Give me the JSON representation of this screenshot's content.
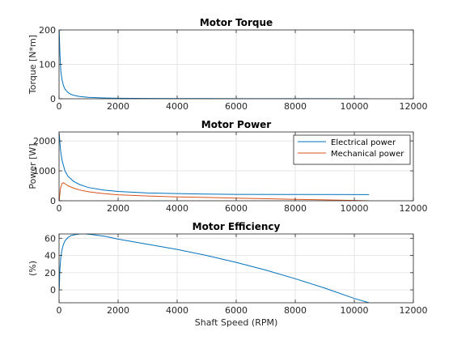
{
  "chart_data": [
    {
      "type": "line",
      "title": "Motor Torque",
      "xlabel": "",
      "ylabel": "Torque [N*m]",
      "xlim": [
        0,
        12000
      ],
      "ylim": [
        0,
        200
      ],
      "xticks": [
        0,
        2000,
        4000,
        6000,
        8000,
        10000,
        12000
      ],
      "yticks": [
        0,
        100,
        200
      ],
      "grid": true,
      "legend": null,
      "series": [
        {
          "color": "#0072BD",
          "x": [
            5,
            30,
            60,
            100,
            150,
            200,
            300,
            400,
            500,
            700,
            1000,
            1500,
            2000,
            3000,
            4000,
            6000,
            8000,
            10500
          ],
          "y": [
            200,
            130,
            80,
            55,
            38,
            28,
            18,
            13,
            10,
            6.5,
            4,
            2.3,
            1.5,
            0.9,
            0.6,
            0.3,
            0.15,
            0.05
          ]
        }
      ]
    },
    {
      "type": "line",
      "title": "Motor Power",
      "xlabel": "",
      "ylabel": "Power [W]",
      "xlim": [
        0,
        12000
      ],
      "ylim": [
        0,
        2300
      ],
      "xticks": [
        0,
        2000,
        4000,
        6000,
        8000,
        10000,
        12000
      ],
      "yticks": [
        0,
        1000,
        2000
      ],
      "grid": true,
      "legend": "top-right",
      "series": [
        {
          "name": "Electrical power",
          "color": "#0072BD",
          "x": [
            5,
            50,
            100,
            200,
            300,
            500,
            700,
            1000,
            1500,
            2000,
            3000,
            4000,
            5000,
            6000,
            8000,
            10500
          ],
          "y": [
            2250,
            1700,
            1350,
            1000,
            820,
            640,
            540,
            440,
            360,
            310,
            260,
            240,
            225,
            215,
            210,
            205
          ]
        },
        {
          "name": "Mechanical power",
          "color": "#D95319",
          "x": [
            5,
            50,
            100,
            150,
            200,
            300,
            500,
            700,
            1000,
            1500,
            2000,
            3000,
            4000,
            5000,
            6000,
            8000,
            9000,
            10500
          ],
          "y": [
            0,
            420,
            580,
            600,
            570,
            500,
            420,
            360,
            300,
            240,
            200,
            160,
            130,
            110,
            90,
            50,
            30,
            0
          ]
        }
      ]
    },
    {
      "type": "line",
      "title": "Motor Efficiency",
      "xlabel": "Shaft Speed (RPM)",
      "ylabel": "(%)",
      "xlim": [
        0,
        12000
      ],
      "ylim": [
        -15,
        65
      ],
      "xticks": [
        0,
        2000,
        4000,
        6000,
        8000,
        10000,
        12000
      ],
      "yticks": [
        0,
        20,
        40,
        60
      ],
      "grid": true,
      "legend": null,
      "series": [
        {
          "color": "#0072BD",
          "x": [
            5,
            30,
            60,
            100,
            150,
            200,
            300,
            400,
            500,
            700,
            900,
            1200,
            1600,
            2000,
            3000,
            4000,
            5000,
            6000,
            7000,
            8000,
            9000,
            10000,
            10500
          ],
          "y": [
            0,
            25,
            38,
            47,
            53,
            57,
            61,
            63,
            64,
            65,
            65,
            64,
            62,
            59,
            53,
            47,
            40,
            32,
            23,
            13,
            2,
            -10,
            -15
          ]
        }
      ]
    }
  ]
}
